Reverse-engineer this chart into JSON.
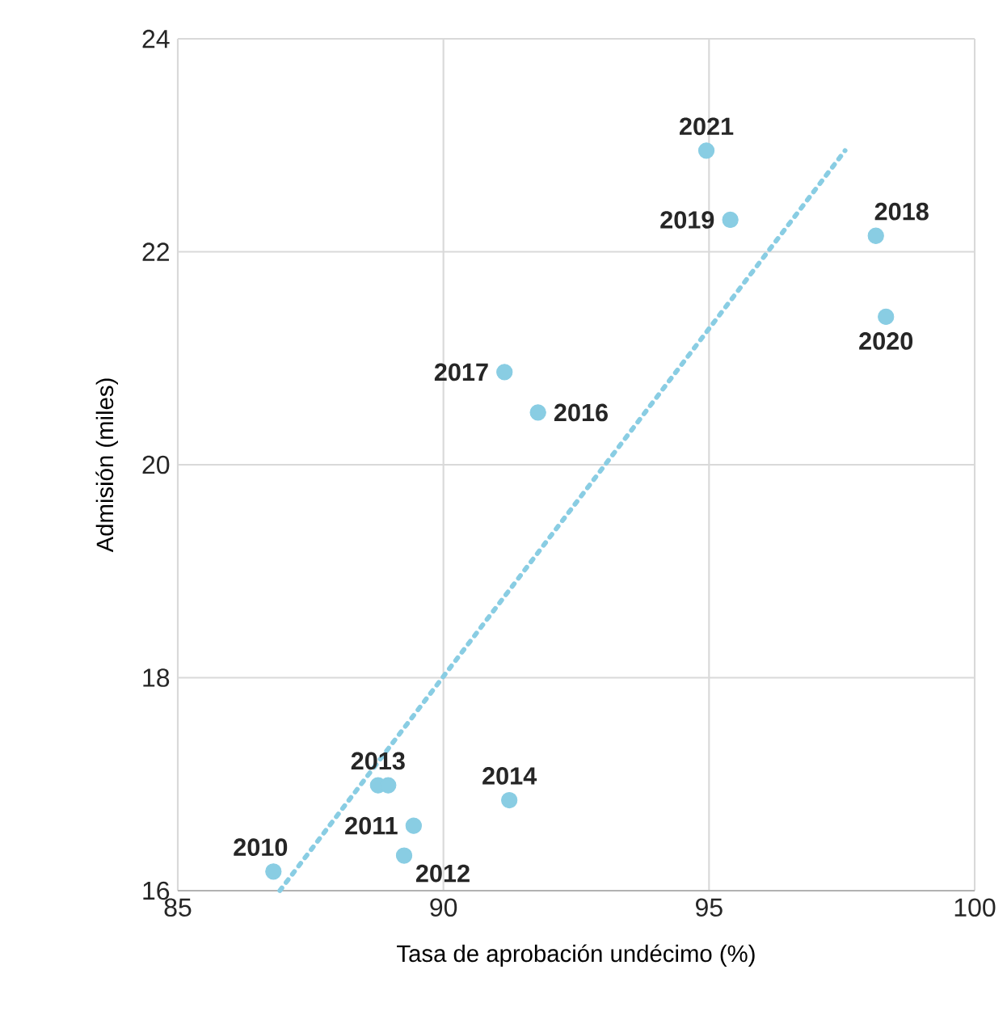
{
  "chart_data": {
    "type": "scatter",
    "xlabel": "Tasa de aprobación undécimo (%)",
    "ylabel": "Admisión (miles)",
    "xlim": [
      85,
      100
    ],
    "xticks": [
      85,
      90,
      95,
      100
    ],
    "ylim": [
      16,
      24
    ],
    "yticks": [
      16,
      18,
      20,
      22,
      24
    ],
    "grid": true,
    "marker": "circle",
    "series": [
      {
        "color": "#89cde3",
        "x": [
          86.8,
          89.44,
          89.26,
          88.77,
          91.24,
          88.96,
          91.78,
          91.15,
          98.14,
          95.4,
          98.33,
          94.95
        ],
        "values": [
          16.18,
          16.61,
          16.33,
          16.99,
          16.85,
          16.99,
          20.49,
          20.87,
          22.15,
          22.3,
          21.39,
          22.95
        ]
      },
      {
        "type": "line",
        "line_style": "dotted",
        "marker": "none",
        "color": "#89cde3",
        "x": [
          86.92,
          97.56
        ],
        "values": [
          16.0,
          22.95
        ]
      }
    ],
    "annotations": [
      {
        "text": "2010",
        "x": 86.8,
        "y": 16.18
      },
      {
        "text": "2011",
        "x": 89.44,
        "y": 16.61
      },
      {
        "text": "2012",
        "x": 89.26,
        "y": 16.33
      },
      {
        "text": "2013",
        "x": 88.77,
        "y": 16.99
      },
      {
        "text": "2014",
        "x": 91.24,
        "y": 16.85
      },
      {
        "text": "2016",
        "x": 91.78,
        "y": 20.49
      },
      {
        "text": "2017",
        "x": 91.15,
        "y": 20.87
      },
      {
        "text": "2018",
        "x": 98.14,
        "y": 22.15
      },
      {
        "text": "2019",
        "x": 95.4,
        "y": 22.3
      },
      {
        "text": "2020",
        "x": 98.33,
        "y": 21.39
      },
      {
        "text": "2021",
        "x": 94.95,
        "y": 22.95
      }
    ]
  }
}
